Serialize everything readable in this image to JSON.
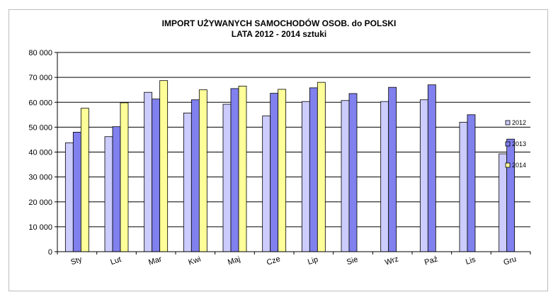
{
  "chart_data": {
    "type": "bar",
    "title": "IMPORT UŻYWANYCH SAMOCHODÓW OSOB. do POLSKI",
    "subtitle": "LATA 2012 - 2014 sztuki",
    "xlabel": "",
    "ylabel": "",
    "categories": [
      "Sty",
      "Lut",
      "Mar",
      "Kwi",
      "Maj",
      "Cze",
      "Lip",
      "Sie",
      "Wrz",
      "Paź",
      "Lis",
      "Gru"
    ],
    "y_ticks": [
      "0",
      "10 000",
      "20 000",
      "30 000",
      "40 000",
      "50 000",
      "60 000",
      "70 000",
      "80 000"
    ],
    "ylim": [
      0,
      80000
    ],
    "grid": true,
    "legend_position": "right",
    "series": [
      {
        "name": "2012",
        "color": "#ccccff",
        "values": [
          43700,
          46200,
          64000,
          55700,
          59200,
          54500,
          60300,
          60700,
          60300,
          61000,
          52000,
          39300
        ]
      },
      {
        "name": "2013",
        "color": "#8080ee",
        "values": [
          48000,
          50200,
          61300,
          61000,
          65500,
          63600,
          65800,
          63500,
          66000,
          67000,
          55000,
          45200
        ]
      },
      {
        "name": "2014",
        "color": "#ffff99",
        "values": [
          57600,
          59800,
          68700,
          65000,
          66500,
          65200,
          68000,
          null,
          null,
          null,
          null,
          null
        ]
      }
    ]
  }
}
